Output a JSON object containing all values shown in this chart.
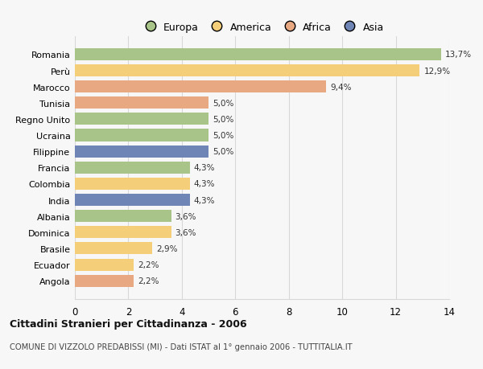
{
  "categories": [
    "Angola",
    "Ecuador",
    "Brasile",
    "Dominica",
    "Albania",
    "India",
    "Colombia",
    "Francia",
    "Filippine",
    "Ucraina",
    "Regno Unito",
    "Tunisia",
    "Marocco",
    "Perù",
    "Romania"
  ],
  "values": [
    2.2,
    2.2,
    2.9,
    3.6,
    3.6,
    4.3,
    4.3,
    4.3,
    5.0,
    5.0,
    5.0,
    5.0,
    9.4,
    12.9,
    13.7
  ],
  "labels": [
    "2,2%",
    "2,2%",
    "2,9%",
    "3,6%",
    "3,6%",
    "4,3%",
    "4,3%",
    "4,3%",
    "5,0%",
    "5,0%",
    "5,0%",
    "5,0%",
    "9,4%",
    "12,9%",
    "13,7%"
  ],
  "colors": [
    "#e8a882",
    "#f5ce7a",
    "#f5ce7a",
    "#f5ce7a",
    "#a8c488",
    "#6e85b5",
    "#f5ce7a",
    "#a8c488",
    "#6e85b5",
    "#a8c488",
    "#a8c488",
    "#e8a882",
    "#e8a882",
    "#f5ce7a",
    "#a8c488"
  ],
  "legend_labels": [
    "Europa",
    "America",
    "Africa",
    "Asia"
  ],
  "legend_colors": [
    "#a8c488",
    "#f5ce7a",
    "#e8a882",
    "#6e85b5"
  ],
  "title": "Cittadini Stranieri per Cittadinanza - 2006",
  "subtitle": "COMUNE DI VIZZOLO PREDABISSI (MI) - Dati ISTAT al 1° gennaio 2006 - TUTTITALIA.IT",
  "xlim": [
    0,
    14
  ],
  "xticks": [
    0,
    2,
    4,
    6,
    8,
    10,
    12,
    14
  ],
  "bg_color": "#f7f7f7",
  "grid_color": "#d8d8d8",
  "bar_height": 0.75
}
